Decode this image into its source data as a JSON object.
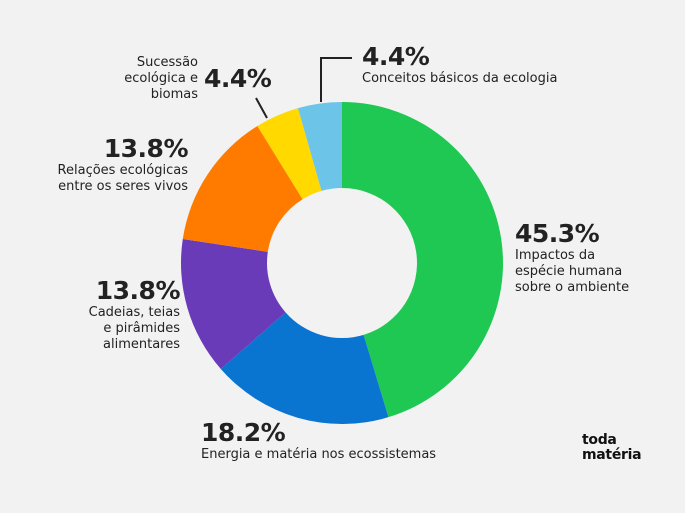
{
  "chart_data": {
    "type": "pie",
    "donut": true,
    "start": "top, clockwise",
    "slices": [
      {
        "label": "Impactos da espécie humana sobre o ambiente",
        "value": 45.3,
        "value_label": "45.3%",
        "color": "#1ec853"
      },
      {
        "label": "Energia e matéria nos ecossistemas",
        "value": 18.2,
        "value_label": "18.2%",
        "color": "#0a74d1"
      },
      {
        "label": "Cadeias, teias e pirâmides alimentares",
        "value": 13.8,
        "value_label": "13.8%",
        "color": "#6a3bb8"
      },
      {
        "label": "Relações ecológicas entre os seres vivos",
        "value": 13.8,
        "value_label": "13.8%",
        "color": "#ff7b00"
      },
      {
        "label": "Sucessão ecológica e biomas",
        "value": 4.4,
        "value_label": "4.4%",
        "color": "#ffd900"
      },
      {
        "label": "Conceitos básicos da ecologia",
        "value": 4.4,
        "value_label": "4.4%",
        "color": "#6cc4e8"
      }
    ]
  },
  "labels": {
    "s0": {
      "pct": "45.3%",
      "lines": [
        "Impactos da",
        "espécie humana",
        "sobre o ambiente"
      ]
    },
    "s1": {
      "pct": "18.2%",
      "lines": [
        "Energia e matéria nos ecossistemas"
      ]
    },
    "s2": {
      "pct": "13.8%",
      "lines": [
        "Cadeias, teias",
        "e pirâmides",
        "alimentares"
      ]
    },
    "s3": {
      "pct": "13.8%",
      "lines": [
        "Relações ecológicas",
        "entre os seres vivos"
      ]
    },
    "s4": {
      "pct": "4.4%",
      "lines": [
        "Sucessão",
        "ecológica e",
        "biomas"
      ]
    },
    "s5": {
      "pct": "4.4%",
      "lines": [
        "Conceitos básicos da ecologia"
      ]
    }
  },
  "logo": {
    "line1": "toda",
    "line2": "matéria"
  }
}
